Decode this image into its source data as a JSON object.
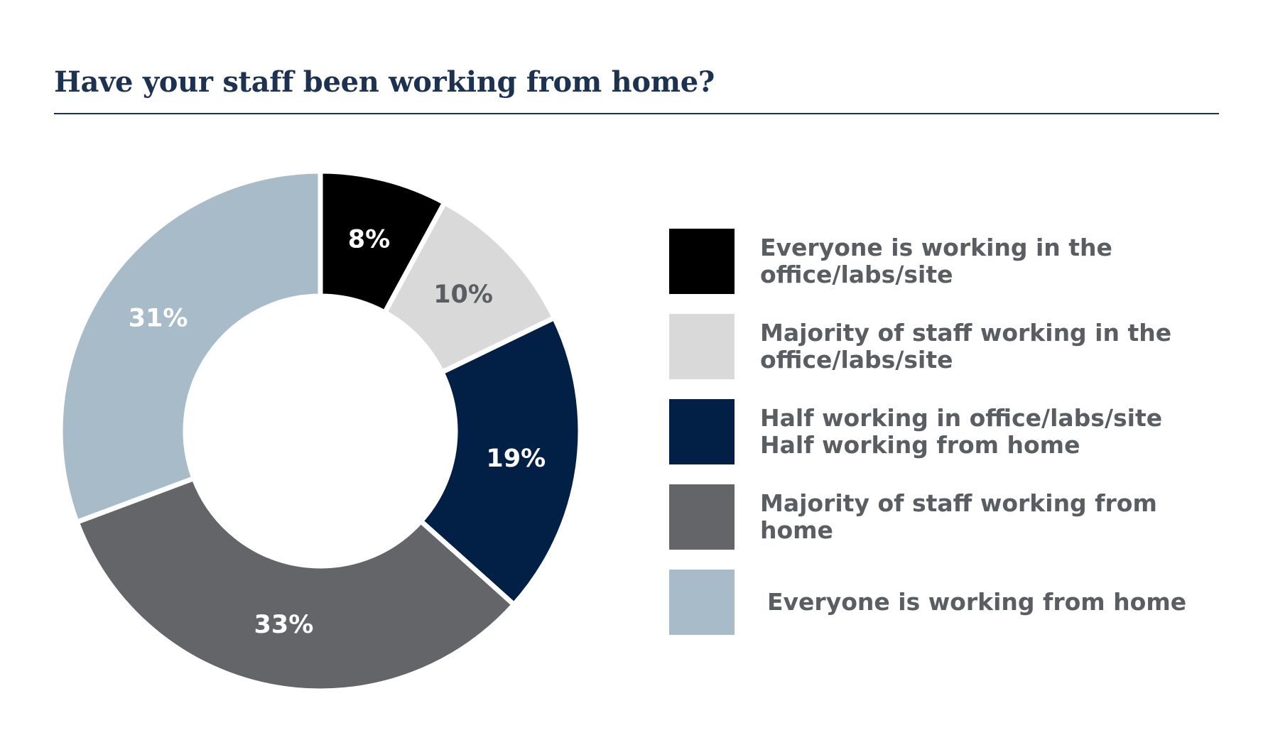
{
  "chart_data": {
    "type": "donut",
    "title": "Have your staff been working from home?",
    "value_suffix": "%",
    "slices": [
      {
        "label": "Everyone is working in the\noffice/labs/site",
        "value": 8,
        "color": "#000000",
        "label_color": "#ffffff"
      },
      {
        "label": "Majority of staff working in the\noffice/labs/site",
        "value": 10,
        "color": "#d9d9d9",
        "label_color": "#5a5d61"
      },
      {
        "label": "Half working in office/labs/site\nHalf working from home",
        "value": 19,
        "color": "#021f45",
        "label_color": "#ffffff"
      },
      {
        "label": "Majority of staff working from\nhome",
        "value": 33,
        "color": "#646568",
        "label_color": "#ffffff"
      },
      {
        "label": "Everyone is working from home",
        "value": 31,
        "color": "#a7bcc8",
        "label_color": "#ffffff"
      }
    ]
  }
}
